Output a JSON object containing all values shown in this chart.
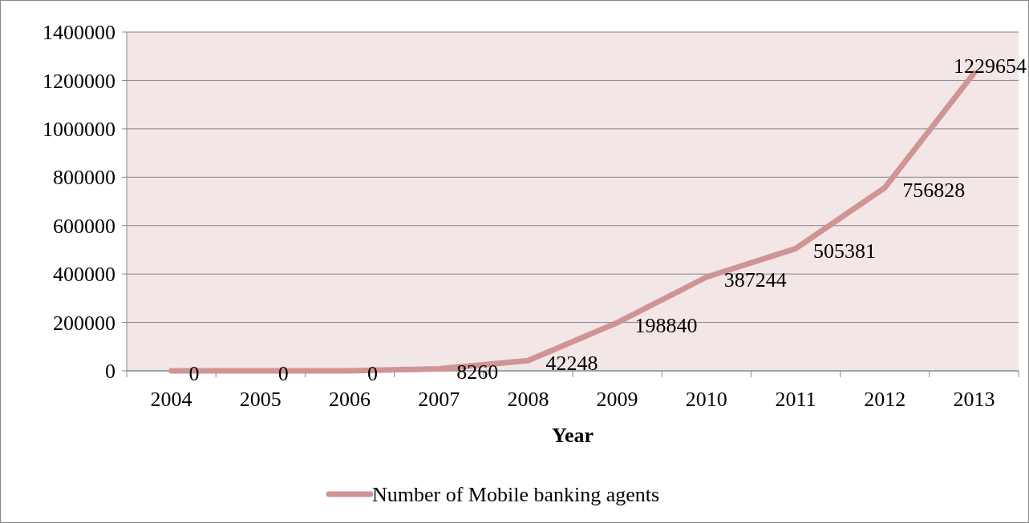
{
  "chart_data": {
    "type": "line",
    "xlabel": "Year",
    "categories": [
      "2004",
      "2005",
      "2006",
      "2007",
      "2008",
      "2009",
      "2010",
      "2011",
      "2012",
      "2013"
    ],
    "series": [
      {
        "name": "Number of Mobile banking agents",
        "color": "#d09494",
        "values": [
          0,
          0,
          0,
          8260,
          42248,
          198840,
          387244,
          505381,
          756828,
          1229654
        ]
      }
    ],
    "ylim": [
      0,
      1400000
    ],
    "yticks": [
      0,
      200000,
      400000,
      600000,
      800000,
      1000000,
      1200000,
      1400000
    ],
    "grid": "y",
    "legend": "bottom",
    "data_labels": true,
    "marker": "none",
    "line_style": "solid"
  }
}
